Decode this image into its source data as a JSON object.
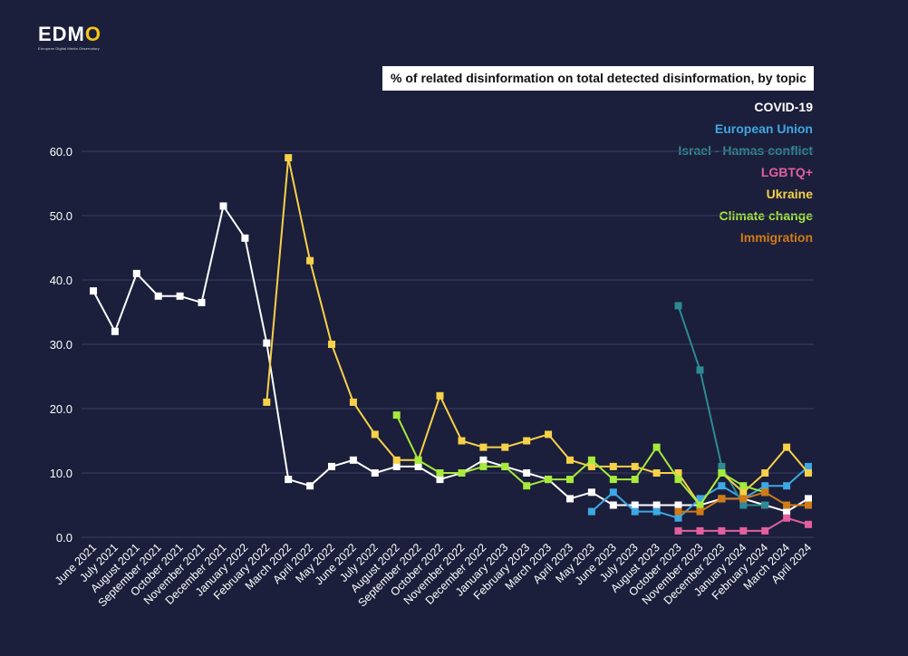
{
  "logo": {
    "text_main": "EDM",
    "text_o": "O",
    "subtitle": "European Digital Media Observatory"
  },
  "chart_data": {
    "type": "line",
    "title": "% of related disinformation on total detected disinformation, by topic",
    "xlabel": "",
    "ylabel": "",
    "ylim": [
      0,
      60
    ],
    "yticks": [
      "60.0",
      "50.0",
      "40.0",
      "30.0",
      "20.0",
      "10.0",
      "0.0"
    ],
    "grid": true,
    "legend_position": "top-right",
    "categories": [
      "June 2021",
      "July 2021",
      "August 2021",
      "September 2021",
      "October 2021",
      "November 2021",
      "December 2021",
      "January 2022",
      "February 2022",
      "March 2022",
      "April 2022",
      "May 2022",
      "June 2022",
      "July 2022",
      "August 2022",
      "September 2022",
      "October 2022",
      "November 2022",
      "December 2022",
      "January 2023",
      "February 2023",
      "March 2023",
      "April 2023",
      "May 2023",
      "June 2023",
      "July 2023",
      "August 2023",
      "October 2023",
      "November 2023",
      "December 2023",
      "January 2024",
      "February 2024",
      "March 2024",
      "April 2024"
    ],
    "series": [
      {
        "name": "COVID-19",
        "color": "#ffffff",
        "values": [
          38.3,
          32,
          41,
          37.5,
          37.5,
          36.5,
          51.5,
          46.5,
          30.2,
          9,
          8,
          11,
          12,
          10,
          11,
          11,
          9,
          10,
          12,
          11,
          10,
          9,
          6,
          7,
          5,
          5,
          5,
          5,
          5,
          6,
          6,
          5,
          4,
          6
        ]
      },
      {
        "name": "European Union",
        "color": "#3ea8e5",
        "values": [
          null,
          null,
          null,
          null,
          null,
          null,
          null,
          null,
          null,
          null,
          null,
          null,
          null,
          null,
          null,
          null,
          null,
          null,
          null,
          null,
          null,
          null,
          null,
          4,
          7,
          4,
          4,
          3,
          6,
          8,
          6,
          8,
          8,
          11
        ]
      },
      {
        "name": "Israel - Hamas conflict",
        "color": "#2e8a93",
        "values": [
          null,
          null,
          null,
          null,
          null,
          null,
          null,
          null,
          null,
          null,
          null,
          null,
          null,
          null,
          null,
          null,
          null,
          null,
          null,
          null,
          null,
          null,
          null,
          null,
          null,
          null,
          null,
          36,
          26,
          11,
          5,
          5,
          null,
          10
        ]
      },
      {
        "name": "LGBTQ+",
        "color": "#e35f9e",
        "values": [
          null,
          null,
          null,
          null,
          null,
          null,
          null,
          null,
          null,
          null,
          null,
          null,
          null,
          null,
          null,
          null,
          null,
          null,
          null,
          null,
          null,
          null,
          null,
          null,
          null,
          null,
          null,
          1,
          1,
          1,
          1,
          1,
          3,
          2
        ]
      },
      {
        "name": "Ukraine",
        "color": "#f7d14a",
        "values": [
          null,
          null,
          null,
          null,
          null,
          null,
          null,
          null,
          21,
          59,
          43,
          30,
          21,
          16,
          12,
          12,
          22,
          15,
          14,
          14,
          15,
          16,
          12,
          11,
          11,
          11,
          10,
          10,
          5,
          10,
          7,
          10,
          14,
          10
        ]
      },
      {
        "name": "Climate change",
        "color": "#a6ea3c",
        "values": [
          null,
          null,
          null,
          null,
          null,
          null,
          null,
          null,
          null,
          null,
          null,
          null,
          null,
          null,
          19,
          12,
          10,
          10,
          11,
          11,
          8,
          9,
          9,
          12,
          9,
          9,
          14,
          9,
          5,
          10,
          8,
          7,
          null,
          null
        ]
      },
      {
        "name": "Immigration",
        "color": "#d07a18",
        "values": [
          null,
          null,
          null,
          null,
          null,
          null,
          null,
          null,
          null,
          null,
          null,
          null,
          null,
          null,
          null,
          null,
          null,
          null,
          null,
          null,
          null,
          null,
          null,
          null,
          null,
          null,
          null,
          4,
          4,
          6,
          6,
          7,
          5,
          5
        ]
      }
    ]
  }
}
